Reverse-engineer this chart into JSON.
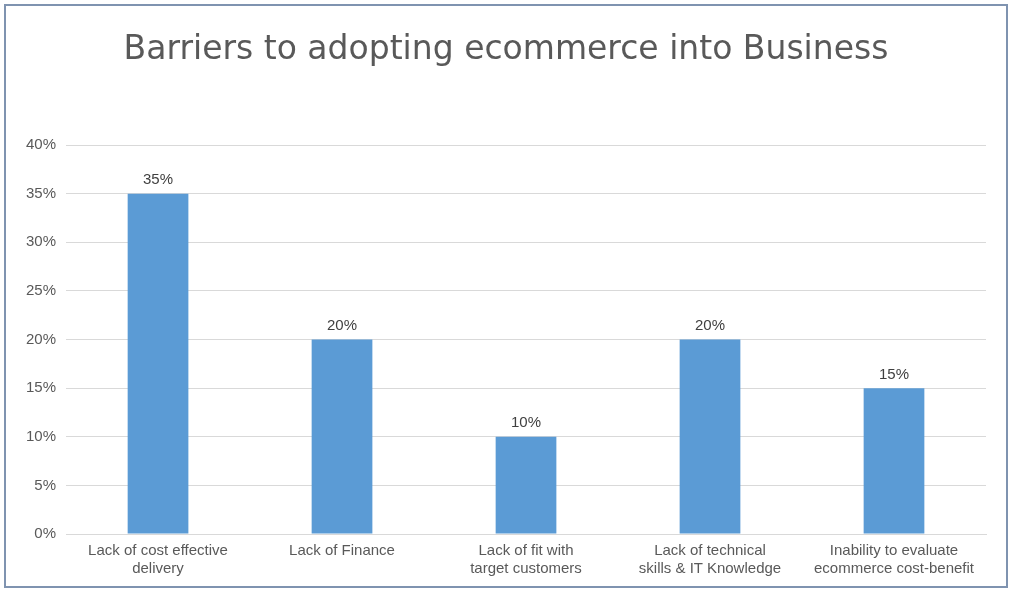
{
  "chart_data": {
    "type": "bar",
    "title": "Barriers to adopting ecommerce into Business",
    "categories": [
      "Lack of cost effective delivery",
      "Lack of Finance",
      "Lack of fit with target customers",
      "Lack of technical skills & IT Knowledge",
      "Inability to evaluate ecommerce cost-benefit"
    ],
    "values": [
      35,
      20,
      10,
      20,
      15
    ],
    "value_labels": [
      "35%",
      "20%",
      "10%",
      "20%",
      "15%"
    ],
    "color": "#5b9bd5",
    "ylim": [
      0,
      40
    ],
    "yticks": [
      {
        "value": 0,
        "label": "0%"
      },
      {
        "value": 5,
        "label": "5%"
      },
      {
        "value": 10,
        "label": "10%"
      },
      {
        "value": 15,
        "label": "15%"
      },
      {
        "value": 20,
        "label": "20%"
      },
      {
        "value": 25,
        "label": "25%"
      },
      {
        "value": 30,
        "label": "30%"
      },
      {
        "value": 35,
        "label": "35%"
      },
      {
        "value": 40,
        "label": "40%"
      }
    ],
    "grid": "y",
    "legend": false
  }
}
